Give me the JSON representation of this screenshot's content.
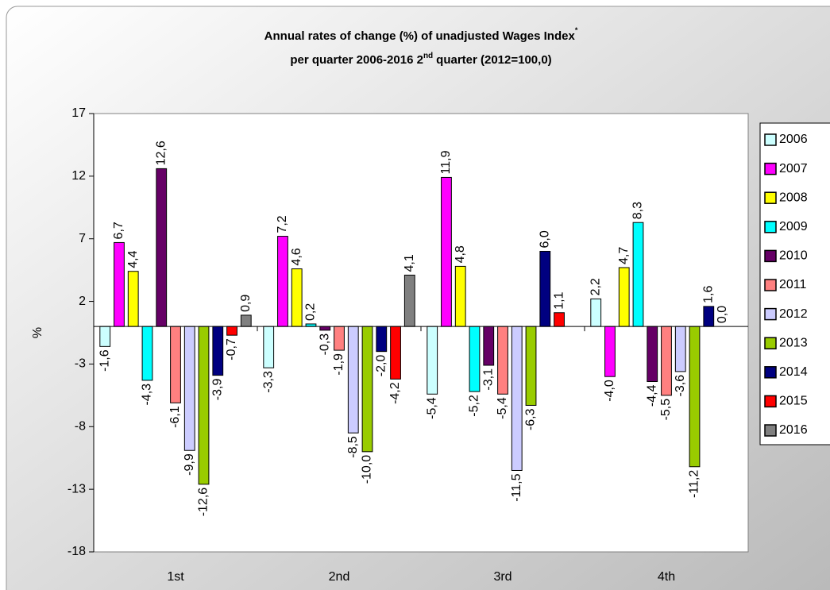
{
  "chart_data": {
    "type": "bar",
    "title": {
      "line1": "Annual rates of change (%) of unadjusted Wages Index",
      "line1_sup": "*",
      "line2_a": "per quarter 2006-2016 2",
      "line2_sup": "nd",
      "line2_b": "quarter (2012=100,0)"
    },
    "ylabel": "%",
    "categories": [
      "1st",
      "2nd",
      "3rd",
      "4th"
    ],
    "ylim": [
      -18,
      17
    ],
    "yticks": [
      -18,
      -13,
      -8,
      -3,
      2,
      7,
      12,
      17
    ],
    "series": [
      {
        "name": "2006",
        "color": "#ccffff",
        "values": [
          -1.6,
          -3.3,
          -5.4,
          2.2
        ],
        "value_labels": [
          "-1,6",
          "-3,3",
          "-5,4",
          "2,2"
        ]
      },
      {
        "name": "2007",
        "color": "#ff00ff",
        "values": [
          6.7,
          7.2,
          11.9,
          -4.0
        ],
        "value_labels": [
          "6,7",
          "7,2",
          "11,9",
          "-4,0"
        ]
      },
      {
        "name": "2008",
        "color": "#ffff00",
        "values": [
          4.4,
          4.6,
          4.8,
          4.7
        ],
        "value_labels": [
          "4,4",
          "4,6",
          "4,8",
          "4,7"
        ]
      },
      {
        "name": "2009",
        "color": "#00ffff",
        "values": [
          -4.3,
          0.2,
          -5.2,
          8.3
        ],
        "value_labels": [
          "-4,3",
          "0,2",
          "-5,2",
          "8,3"
        ]
      },
      {
        "name": "2010",
        "color": "#660066",
        "values": [
          12.6,
          -0.3,
          -3.1,
          -4.4
        ],
        "value_labels": [
          "12,6",
          "-0,3",
          "-3,1",
          "-4,4"
        ]
      },
      {
        "name": "2011",
        "color": "#ff8080",
        "values": [
          -6.1,
          -1.9,
          -5.4,
          -5.5
        ],
        "value_labels": [
          "-6,1",
          "-1,9",
          "-5,4",
          "-5,5"
        ]
      },
      {
        "name": "2012",
        "color": "#ccccff",
        "values": [
          -9.9,
          -8.5,
          -11.5,
          -3.6
        ],
        "value_labels": [
          "-9,9",
          "-8,5",
          "-11,5",
          "-3,6"
        ]
      },
      {
        "name": "2013",
        "color": "#99cc00",
        "values": [
          -12.6,
          -10.0,
          -6.3,
          -11.2
        ],
        "value_labels": [
          "-12,6",
          "-10,0",
          "-6,3",
          "-11,2"
        ]
      },
      {
        "name": "2014",
        "color": "#000080",
        "values": [
          -3.9,
          -2.0,
          6.0,
          1.6
        ],
        "value_labels": [
          "-3,9",
          "-2,0",
          "6,0",
          "1,6"
        ]
      },
      {
        "name": "2015",
        "color": "#ff0000",
        "values": [
          -0.7,
          -4.2,
          1.1,
          0.0
        ],
        "value_labels": [
          "-0,7",
          "-4,2",
          "1,1",
          "0,0"
        ]
      },
      {
        "name": "2016",
        "color": "#808080",
        "values": [
          0.9,
          4.1,
          null,
          null
        ],
        "value_labels": [
          "0,9",
          "4,1",
          null,
          null
        ]
      }
    ]
  }
}
